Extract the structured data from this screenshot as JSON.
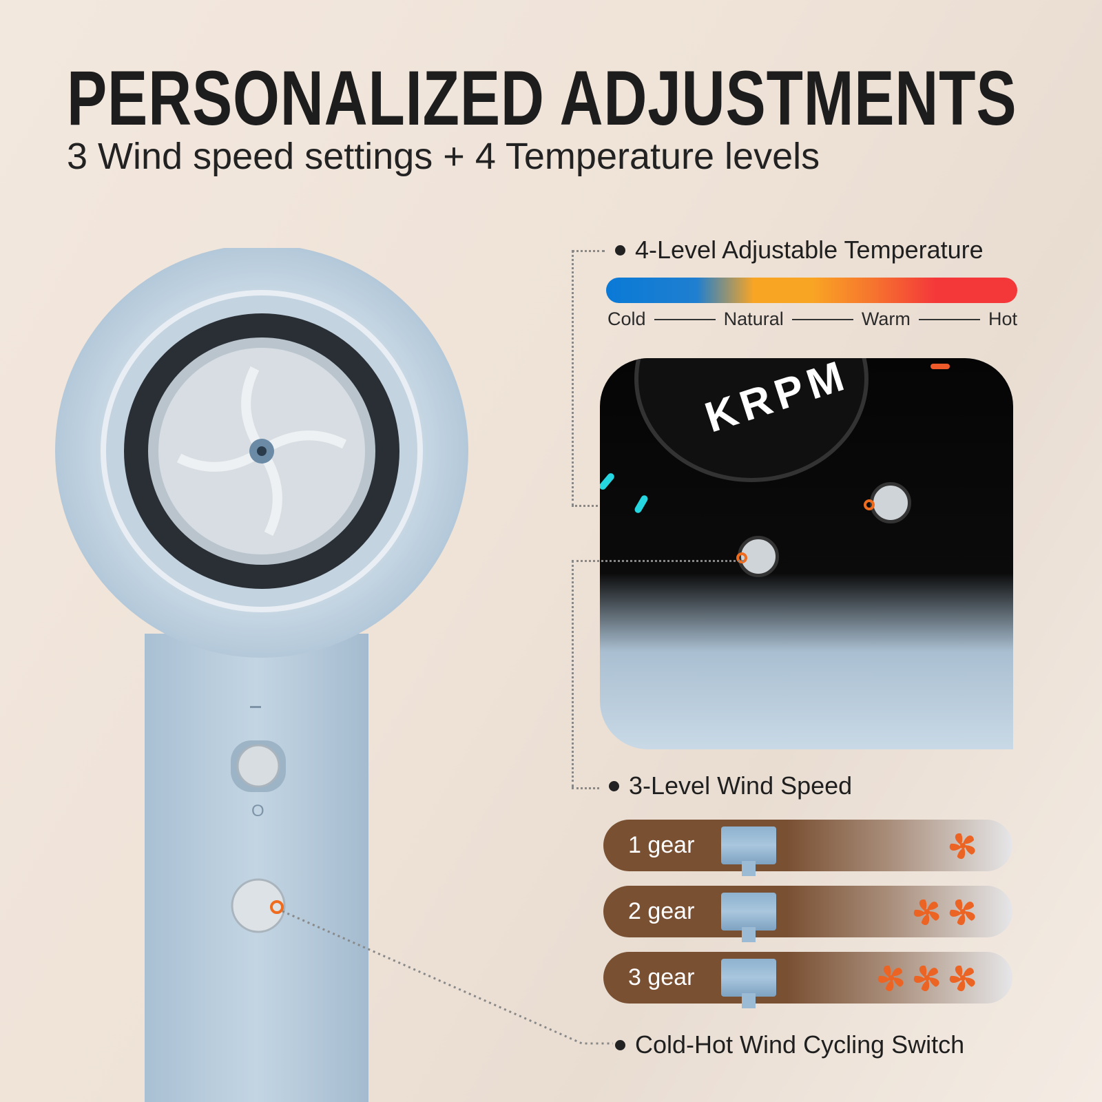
{
  "header": {
    "title": "PERSONALIZED ADJUSTMENTS",
    "subtitle": "3 Wind speed settings + 4 Temperature levels"
  },
  "temperature": {
    "label": "4-Level Adjustable Temperature",
    "levels": [
      "Cold",
      "Natural",
      "Warm",
      "Hot"
    ],
    "gradient_colors": [
      "#0a7ad6",
      "#f9a524",
      "#f4383a"
    ]
  },
  "display": {
    "unit": "KRPM"
  },
  "wind": {
    "label": "3-Level Wind Speed",
    "gears": [
      {
        "label": "1 gear",
        "fans": 1
      },
      {
        "label": "2 gear",
        "fans": 2
      },
      {
        "label": "3 gear",
        "fans": 3
      }
    ],
    "fan_color": "#ec6424",
    "bar_color": "#7a5033"
  },
  "switch": {
    "label": "Cold-Hot Wind Cycling Switch"
  },
  "accent": "#ef6c1f"
}
